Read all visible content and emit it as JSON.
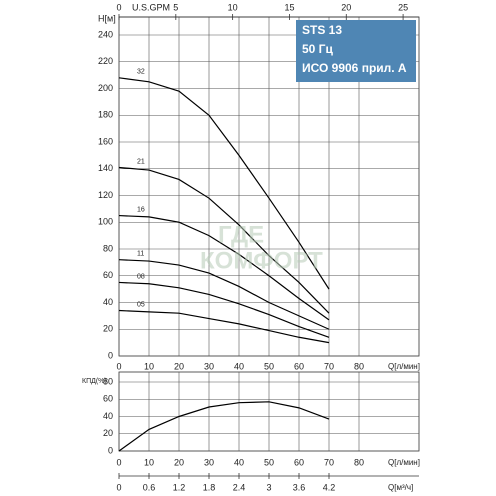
{
  "chart_data": [
    {
      "type": "line",
      "title_lines": [
        "STS 13",
        "50 Гц",
        "ИСО 9906 прил. А"
      ],
      "watermark": [
        "ГДЕ",
        "КОМФОРТ"
      ],
      "y_label": "H[м]",
      "x_label": "Q[л/мин]",
      "x2_label": "U.S.GPM",
      "xlim": [
        0,
        100
      ],
      "xticks": [
        0,
        10,
        20,
        30,
        40,
        50,
        60,
        70,
        80
      ],
      "x2lim": [
        0,
        26.4
      ],
      "x2ticks": [
        0,
        5,
        10,
        15,
        20,
        25
      ],
      "ylim": [
        0,
        240
      ],
      "yticks": [
        0,
        20,
        40,
        60,
        80,
        100,
        120,
        140,
        160,
        180,
        200,
        220,
        240
      ],
      "grid": true,
      "title_color": "#4f86b4",
      "x": [
        0,
        10,
        20,
        30,
        40,
        50,
        60,
        70
      ],
      "series": [
        {
          "name": "32",
          "color": "#000000",
          "values": [
            208,
            205,
            198,
            180,
            150,
            118,
            85,
            50
          ]
        },
        {
          "name": "21",
          "color": "#000000",
          "values": [
            141,
            139,
            132,
            118,
            98,
            75,
            55,
            32
          ]
        },
        {
          "name": "16",
          "color": "#000000",
          "values": [
            105,
            104,
            100,
            90,
            76,
            60,
            43,
            27
          ]
        },
        {
          "name": "11",
          "color": "#000000",
          "values": [
            72,
            71,
            68,
            62,
            52,
            40,
            30,
            20
          ]
        },
        {
          "name": "08",
          "color": "#000000",
          "values": [
            55,
            54,
            51,
            46,
            39,
            31,
            22,
            14
          ]
        },
        {
          "name": "05",
          "color": "#000000",
          "values": [
            34,
            33,
            32,
            28,
            24,
            19,
            14,
            10
          ]
        }
      ]
    },
    {
      "type": "line",
      "y_label": "КПД(%)",
      "x_label": "Q[л/мин]",
      "x2_label": "Q[м³/ч]",
      "xlim": [
        0,
        100
      ],
      "xticks": [
        0,
        10,
        20,
        30,
        40,
        50,
        60,
        70,
        80
      ],
      "x2lim": [
        0,
        6
      ],
      "x2ticks": [
        0,
        0.6,
        1.2,
        1.8,
        2.4,
        3,
        3.6,
        4.2
      ],
      "ylim": [
        0,
        80
      ],
      "yticks": [
        0,
        20,
        40,
        60,
        80
      ],
      "grid": true,
      "x": [
        0,
        10,
        20,
        30,
        40,
        50,
        60,
        70
      ],
      "series": [
        {
          "color": "#000000",
          "values": [
            0,
            25,
            40,
            51,
            56,
            57,
            50,
            37
          ]
        }
      ]
    }
  ]
}
